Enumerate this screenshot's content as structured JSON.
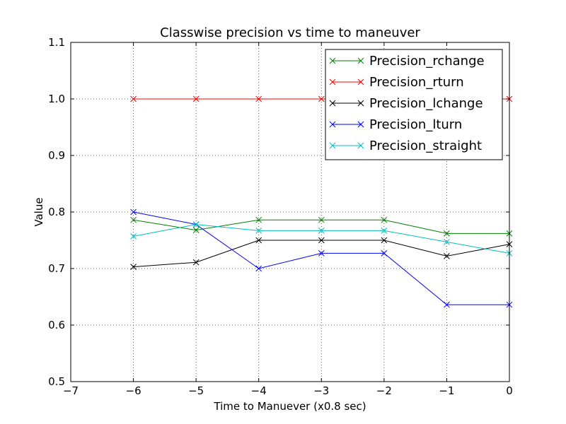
{
  "chart_data": {
    "type": "line",
    "title": "Classwise precision vs time to maneuver",
    "xlabel": "Time to Manuever (x0.8 sec)",
    "ylabel": "Value",
    "xlim": [
      -7,
      0
    ],
    "ylim": [
      0.5,
      1.1
    ],
    "xticks": [
      -7,
      -6,
      -5,
      -4,
      -3,
      -2,
      -1,
      0
    ],
    "xtick_labels": [
      "−7",
      "−6",
      "−5",
      "−4",
      "−3",
      "−2",
      "−1",
      "0"
    ],
    "yticks": [
      0.5,
      0.6,
      0.7,
      0.8,
      0.9,
      1.0,
      1.1
    ],
    "ytick_labels": [
      "0.5",
      "0.6",
      "0.7",
      "0.8",
      "0.9",
      "1.0",
      "1.1"
    ],
    "grid": true,
    "legend_position": "top-right",
    "marker": "x",
    "x": [
      -6,
      -5,
      -4,
      -3,
      -2,
      -1,
      0
    ],
    "series": [
      {
        "name": "Precision_rchange",
        "color": "#008000",
        "values": [
          0.786,
          0.768,
          0.786,
          0.786,
          0.786,
          0.762,
          0.762
        ]
      },
      {
        "name": "Precision_rturn",
        "color": "#ff0000",
        "values": [
          1.0,
          1.0,
          1.0,
          1.0,
          1.0,
          1.0,
          1.0
        ]
      },
      {
        "name": "Precision_lchange",
        "color": "#000000",
        "values": [
          0.703,
          0.711,
          0.75,
          0.75,
          0.75,
          0.722,
          0.743
        ]
      },
      {
        "name": "Precision_lturn",
        "color": "#0000ff",
        "values": [
          0.8,
          0.778,
          0.7,
          0.727,
          0.727,
          0.636,
          0.636
        ]
      },
      {
        "name": "Precision_straight",
        "color": "#00bfbf",
        "values": [
          0.757,
          0.778,
          0.767,
          0.767,
          0.767,
          0.747,
          0.727
        ]
      }
    ]
  }
}
